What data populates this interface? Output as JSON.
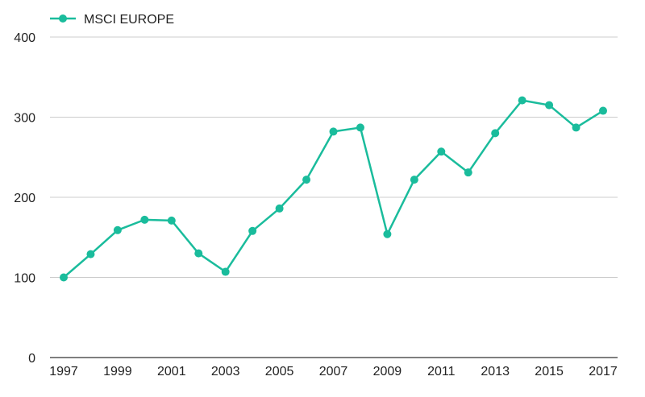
{
  "chart_data": {
    "type": "line",
    "title": "",
    "xlabel": "",
    "ylabel": "",
    "x": [
      "1997",
      "1998",
      "1999",
      "2000",
      "2001",
      "2002",
      "2003",
      "2004",
      "2005",
      "2006",
      "2007",
      "2008",
      "2009",
      "2010",
      "2011",
      "2012",
      "2013",
      "2014",
      "2015",
      "2016",
      "2017"
    ],
    "x_tick_labels": [
      "1997",
      "1999",
      "2001",
      "2003",
      "2005",
      "2007",
      "2009",
      "2011",
      "2013",
      "2015",
      "2017"
    ],
    "y_ticks": [
      0,
      100,
      200,
      300,
      400
    ],
    "ylim": [
      0,
      400
    ],
    "grid": true,
    "legend_position": "top-left",
    "series": [
      {
        "name": "MSCI EUROPE",
        "color": "#1ABC9C",
        "values": [
          100,
          129,
          159,
          172,
          171,
          130,
          107,
          158,
          186,
          222,
          282,
          287,
          154,
          222,
          257,
          231,
          280,
          321,
          315,
          287,
          308
        ]
      }
    ]
  }
}
